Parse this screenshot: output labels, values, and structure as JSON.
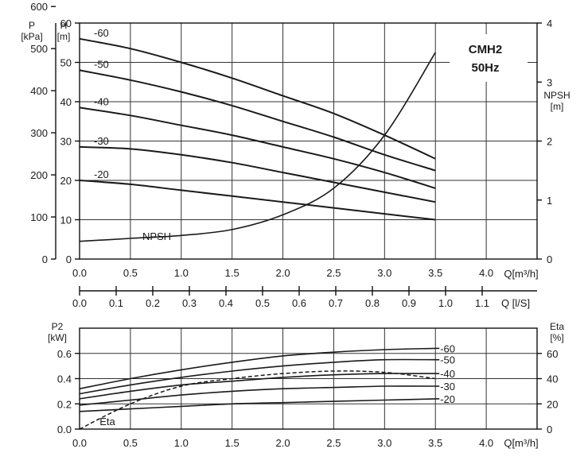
{
  "chart_data": [
    {
      "type": "line",
      "panel": "head-npsh",
      "title": "CMH2",
      "subtitle": "50Hz",
      "x_unit": "Q[m³/h]",
      "x_ticks": [
        "0.0",
        "0.5",
        "1.0",
        "1.5",
        "2.0",
        "2.5",
        "3.0",
        "3.5",
        "4.0"
      ],
      "xlim": [
        0,
        4.5
      ],
      "left_axis_1": {
        "label": "P",
        "unit": "[kPa]",
        "ticks": [
          "0",
          "100",
          "200",
          "300",
          "400",
          "500",
          "600"
        ],
        "lim": [
          0,
          600
        ]
      },
      "left_axis_2": {
        "label": "H",
        "unit": "[m]",
        "ticks": [
          "0",
          "10",
          "20",
          "30",
          "40",
          "50",
          "60"
        ],
        "lim": [
          0,
          60
        ]
      },
      "right_axis": {
        "label": "NPSH",
        "unit": "[m]",
        "ticks": [
          "0",
          "1",
          "2",
          "3",
          "4"
        ],
        "lim": [
          0,
          4
        ]
      },
      "series": [
        {
          "name": "-60",
          "x": [
            0,
            0.5,
            1,
            1.5,
            2,
            2.5,
            3,
            3.5
          ],
          "y": [
            56,
            53.5,
            50,
            46,
            41.5,
            37,
            31.5,
            25.5
          ]
        },
        {
          "name": "-50",
          "x": [
            0,
            0.5,
            1,
            1.5,
            2,
            2.5,
            3,
            3.5
          ],
          "y": [
            48,
            45.5,
            42.5,
            39,
            35,
            31,
            26.5,
            22.5
          ]
        },
        {
          "name": "-40",
          "x": [
            0,
            0.5,
            1,
            1.5,
            2,
            2.5,
            3,
            3.5
          ],
          "y": [
            38.5,
            36.5,
            34,
            31.5,
            28.5,
            25.5,
            22,
            18
          ]
        },
        {
          "name": "-30",
          "x": [
            0,
            0.5,
            1,
            1.5,
            2,
            2.5,
            3,
            3.5
          ],
          "y": [
            28.5,
            28,
            26.5,
            24.5,
            22,
            19.5,
            17,
            14.5
          ]
        },
        {
          "name": "-20",
          "x": [
            0,
            0.5,
            1,
            1.5,
            2,
            2.5,
            3,
            3.5
          ],
          "y": [
            20,
            19,
            17.5,
            16,
            14.5,
            13,
            11.5,
            10
          ]
        },
        {
          "name": "NPSH",
          "axis": "right",
          "x": [
            0,
            0.5,
            1,
            1.5,
            2,
            2.5,
            3,
            3.5
          ],
          "y": [
            0.3,
            0.35,
            0.4,
            0.5,
            0.75,
            1.2,
            2.1,
            3.5
          ]
        }
      ]
    },
    {
      "type": "axis",
      "panel": "flow-ls",
      "unit": "Q [l/S]",
      "ticks": [
        "0.0",
        "0.1",
        "0.2",
        "0.3",
        "0.4",
        "0.5",
        "0.6",
        "0.7",
        "0.8",
        "0.9",
        "1.0",
        "1.1"
      ],
      "lim": [
        0,
        1.25
      ]
    },
    {
      "type": "line",
      "panel": "power-efficiency",
      "x_unit": "Q[m³/h]",
      "x_ticks": [
        "0.0",
        "0.5",
        "1.0",
        "1.5",
        "2.0",
        "2.5",
        "3.0",
        "3.5",
        "4.0"
      ],
      "xlim": [
        0,
        4.5
      ],
      "left_axis": {
        "label": "P2",
        "unit": "[kW]",
        "ticks": [
          "0.0",
          "0.2",
          "0.4",
          "0.6"
        ],
        "lim": [
          0,
          0.8
        ]
      },
      "right_axis": {
        "label": "Eta",
        "unit": "[%]",
        "ticks": [
          "0",
          "20",
          "40",
          "60"
        ],
        "lim": [
          0,
          80
        ]
      },
      "series": [
        {
          "name": "-60",
          "x": [
            0,
            0.5,
            1,
            1.5,
            2,
            2.5,
            3,
            3.5
          ],
          "y": [
            0.32,
            0.4,
            0.47,
            0.53,
            0.58,
            0.61,
            0.63,
            0.64
          ]
        },
        {
          "name": "-50",
          "x": [
            0,
            0.5,
            1,
            1.5,
            2,
            2.5,
            3,
            3.5
          ],
          "y": [
            0.28,
            0.35,
            0.41,
            0.46,
            0.5,
            0.53,
            0.55,
            0.55
          ]
        },
        {
          "name": "-40",
          "x": [
            0,
            0.5,
            1,
            1.5,
            2,
            2.5,
            3,
            3.5
          ],
          "y": [
            0.24,
            0.3,
            0.35,
            0.38,
            0.41,
            0.43,
            0.44,
            0.44
          ]
        },
        {
          "name": "-30",
          "x": [
            0,
            0.5,
            1,
            1.5,
            2,
            2.5,
            3,
            3.5
          ],
          "y": [
            0.19,
            0.23,
            0.27,
            0.3,
            0.32,
            0.33,
            0.34,
            0.34
          ]
        },
        {
          "name": "-20",
          "x": [
            0,
            0.5,
            1,
            1.5,
            2,
            2.5,
            3,
            3.5
          ],
          "y": [
            0.14,
            0.16,
            0.18,
            0.2,
            0.21,
            0.22,
            0.23,
            0.24
          ]
        },
        {
          "name": "Eta",
          "axis": "right",
          "dashed": true,
          "x": [
            0,
            0.5,
            1,
            1.5,
            2,
            2.5,
            3,
            3.5
          ],
          "y": [
            0,
            20,
            34,
            40,
            44,
            46,
            45,
            40
          ]
        }
      ]
    }
  ]
}
